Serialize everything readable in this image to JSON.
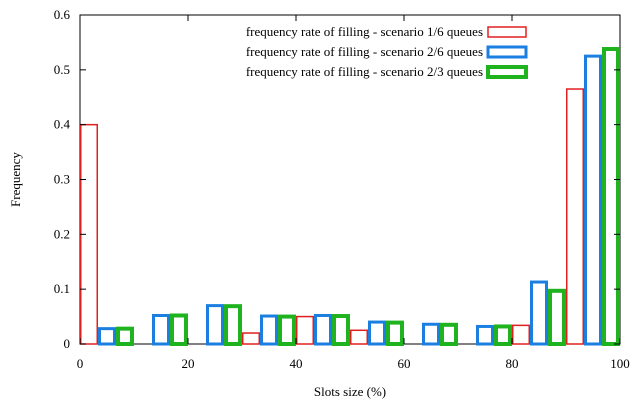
{
  "chart_data": {
    "type": "bar",
    "title": "",
    "xlabel": "Slots size (%)",
    "ylabel": "Frequency",
    "xlim": [
      0,
      100
    ],
    "ylim": [
      0,
      0.6
    ],
    "xticks": [
      "0",
      "20",
      "40",
      "60",
      "80",
      "100"
    ],
    "yticks": [
      "0",
      "0.1",
      "0.2",
      "0.3",
      "0.4",
      "0.5",
      "0.6"
    ],
    "categories": [
      "0-10",
      "10-20",
      "20-30",
      "30-40",
      "40-50",
      "50-60",
      "60-70",
      "70-80",
      "80-90",
      "90-100"
    ],
    "legend_position": "top-right",
    "series": [
      {
        "name": "frequency rate of filling - scenario 1/6 queues",
        "color": "#e0201f",
        "values": [
          0.4,
          0.0,
          0.0,
          0.02,
          0.05,
          0.025,
          0.0,
          0.0,
          0.034,
          0.465
        ]
      },
      {
        "name": "frequency rate of filling - scenario 2/6 queues",
        "color": "#1a7fe0",
        "values": [
          0.028,
          0.052,
          0.07,
          0.051,
          0.052,
          0.04,
          0.036,
          0.032,
          0.113,
          0.525
        ]
      },
      {
        "name": "frequency rate of filling - scenario 2/3 queues",
        "color": "#1fb31f",
        "values": [
          0.028,
          0.052,
          0.069,
          0.05,
          0.051,
          0.039,
          0.035,
          0.032,
          0.097,
          0.538
        ]
      }
    ]
  }
}
